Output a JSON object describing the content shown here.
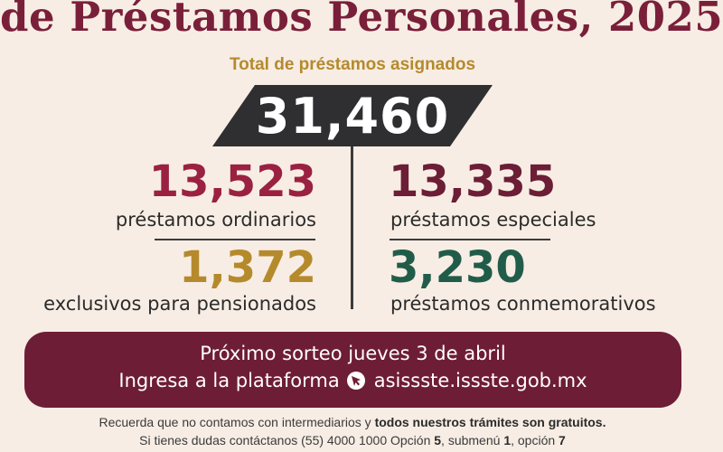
{
  "header": {
    "title": "de Préstamos Personales, 2025",
    "subtitle": "Total de préstamos asignados"
  },
  "total": {
    "value": "31,460"
  },
  "stats": {
    "ordinarios": {
      "value": "13,523",
      "label": "préstamos ordinarios",
      "color": "#9a2142"
    },
    "especiales": {
      "value": "13,335",
      "label": "préstamos especiales",
      "color": "#6b1e36"
    },
    "pensionados": {
      "value": "1,372",
      "label": "exclusivos para pensionados",
      "color": "#b58a2c"
    },
    "conmemorativos": {
      "value": "3,230",
      "label": "préstamos conmemorativos",
      "color": "#215c4a"
    }
  },
  "banner": {
    "line1": "Próximo sorteo jueves 3 de abril",
    "line2_prefix": "Ingresa a la plataforma",
    "cursor_icon": "cursor-click-icon",
    "url": "asissste.issste.gob.mx",
    "color": "#6e1d37"
  },
  "footer": {
    "line1_a": "Recuerda que no contamos con intermediarios y ",
    "line1_b": "todos nuestros trámites son gratuitos.",
    "line2_a": "Si tienes dudas contáctanos (55) 4000 1000 Opción ",
    "line2_opt": "5",
    "line2_b": ", submenú ",
    "line2_sub": "1",
    "line2_c": ", opción ",
    "line2_op": "7"
  }
}
